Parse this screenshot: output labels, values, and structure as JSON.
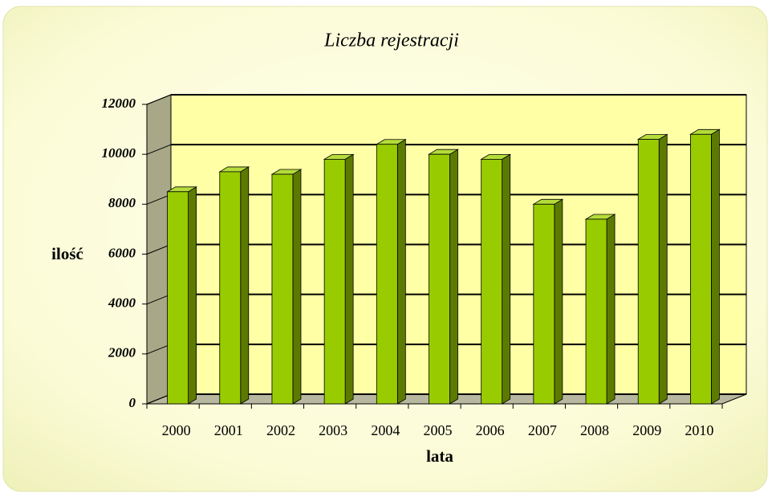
{
  "chart_data": {
    "type": "bar",
    "title": "Liczba rejestracji",
    "x_label": "lata",
    "y_label": "ilość",
    "categories": [
      "2000",
      "2001",
      "2002",
      "2003",
      "2004",
      "2005",
      "2006",
      "2007",
      "2008",
      "2009",
      "2010"
    ],
    "values": [
      8500,
      9300,
      9200,
      9800,
      10400,
      10000,
      9800,
      8000,
      7400,
      10600,
      10800
    ],
    "color": "#99cc00",
    "ylim": [
      0,
      12000
    ],
    "yticks": [
      0,
      2000,
      4000,
      6000,
      8000,
      10000,
      12000
    ],
    "grid": true
  }
}
